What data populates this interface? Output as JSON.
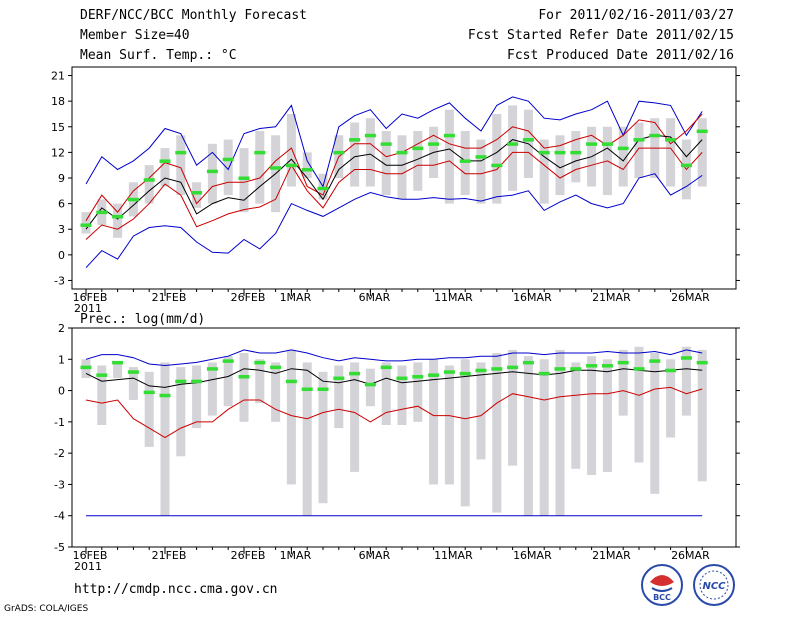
{
  "header": {
    "title": "DERF/NCC/BCC Monthly Forecast",
    "member_size": "Member Size=40",
    "variable": "Mean Surf. Temp.: °C",
    "period": "For 2011/02/16-2011/03/27",
    "started": "Fcst Started Refer Date 2011/02/15",
    "produced": "Fcst Produced Date 2011/02/16"
  },
  "footer": {
    "url": "http://cmdp.ncc.cma.gov.cn",
    "grads": "GrADS: COLA/IGES",
    "logo1": "BCC",
    "logo2": "NCC"
  },
  "colors": {
    "envelope": "#0000cc",
    "spread": "#cc0000",
    "mean": "#000000",
    "box": "#d3d3d8",
    "median": "#33dd33"
  },
  "chart_data": [
    {
      "type": "line",
      "title": "Mean Surf. Temp.: °C",
      "ylim": [
        -4,
        22
      ],
      "yticks": [
        -3,
        0,
        3,
        6,
        9,
        12,
        15,
        18,
        21
      ],
      "xticks": [
        {
          "day": 0,
          "label": "16FEB",
          "sub": "2011"
        },
        {
          "day": 5,
          "label": "21FEB"
        },
        {
          "day": 10,
          "label": "26FEB"
        },
        {
          "day": 13,
          "label": "1MAR"
        },
        {
          "day": 18,
          "label": "6MAR"
        },
        {
          "day": 23,
          "label": "11MAR"
        },
        {
          "day": 28,
          "label": "16MAR"
        },
        {
          "day": 33,
          "label": "21MAR"
        },
        {
          "day": 38,
          "label": "26MAR"
        }
      ],
      "days": 40,
      "series": [
        {
          "name": "max",
          "values": [
            8.3,
            11.5,
            10.0,
            11.0,
            12.5,
            14.8,
            14.2,
            10.5,
            12.0,
            10.0,
            14.2,
            14.8,
            15.0,
            17.5,
            11.0,
            8.0,
            15.0,
            16.3,
            17.0,
            14.8,
            16.5,
            16.0,
            17.0,
            17.8,
            16.0,
            14.5,
            17.5,
            18.5,
            18.0,
            16.0,
            15.8,
            16.5,
            17.0,
            18.0,
            14.0,
            18.0,
            17.8,
            17.5,
            14.0,
            16.8
          ]
        },
        {
          "name": "upper",
          "values": [
            4.0,
            7.0,
            5.0,
            7.5,
            9.0,
            10.8,
            10.2,
            6.0,
            8.0,
            8.5,
            8.5,
            9.0,
            11.0,
            12.5,
            8.0,
            7.0,
            11.5,
            13.0,
            13.0,
            11.5,
            12.0,
            13.0,
            14.0,
            13.0,
            12.5,
            12.5,
            13.5,
            15.0,
            14.5,
            12.5,
            12.8,
            13.5,
            14.0,
            12.8,
            14.0,
            15.8,
            15.5,
            13.0,
            14.5,
            16.5
          ]
        },
        {
          "name": "mean",
          "values": [
            3.0,
            5.5,
            4.2,
            5.8,
            7.5,
            9.0,
            8.5,
            4.8,
            6.0,
            6.7,
            6.4,
            8.0,
            9.5,
            11.2,
            9.0,
            6.5,
            10.0,
            11.5,
            11.8,
            10.5,
            10.5,
            11.2,
            12.0,
            12.4,
            11.0,
            11.0,
            12.0,
            13.5,
            13.0,
            11.5,
            10.2,
            11.0,
            11.5,
            12.5,
            11.0,
            13.5,
            14.0,
            13.8,
            11.5,
            13.5
          ]
        },
        {
          "name": "lower",
          "values": [
            1.8,
            3.5,
            3.0,
            4.2,
            6.0,
            8.3,
            7.0,
            3.3,
            4.0,
            4.8,
            5.3,
            5.6,
            6.5,
            10.5,
            7.5,
            5.5,
            8.5,
            10.0,
            10.0,
            9.5,
            9.5,
            10.5,
            10.5,
            11.0,
            9.5,
            9.5,
            10.0,
            12.0,
            12.0,
            10.5,
            9.0,
            10.0,
            10.5,
            11.0,
            10.0,
            12.5,
            12.5,
            12.5,
            10.0,
            12.0
          ]
        },
        {
          "name": "min",
          "values": [
            -1.5,
            0.5,
            -0.5,
            2.2,
            3.2,
            3.4,
            3.2,
            1.5,
            0.3,
            0.2,
            1.8,
            0.7,
            2.5,
            6.0,
            5.2,
            4.5,
            5.5,
            6.5,
            7.3,
            6.8,
            6.5,
            6.5,
            6.7,
            6.5,
            6.6,
            6.3,
            6.8,
            7.0,
            7.5,
            5.2,
            6.2,
            7.0,
            6.0,
            5.5,
            6.0,
            9.0,
            9.5,
            7.0,
            8.0,
            9.3
          ]
        },
        {
          "name": "median",
          "values": [
            3.5,
            5.0,
            4.5,
            6.5,
            8.8,
            11.0,
            12.0,
            7.3,
            9.8,
            11.2,
            9.0,
            12.0,
            10.2,
            10.5,
            10.0,
            7.8,
            12.0,
            13.5,
            14.0,
            13.0,
            12.0,
            12.5,
            13.0,
            14.0,
            11.0,
            11.5,
            10.5,
            13.0,
            13.5,
            12.0,
            12.0,
            12.0,
            13.0,
            13.0,
            12.5,
            13.5,
            14.0,
            13.5,
            10.5,
            14.5
          ]
        },
        {
          "name": "box_low",
          "values": [
            2.5,
            3.5,
            2.0,
            4.5,
            6.0,
            8.0,
            7.0,
            5.5,
            6.0,
            7.0,
            5.0,
            6.0,
            5.0,
            8.0,
            9.0,
            6.5,
            9.0,
            8.0,
            8.0,
            7.0,
            6.5,
            7.5,
            9.0,
            6.0,
            7.0,
            6.0,
            6.0,
            7.5,
            9.0,
            6.0,
            7.0,
            8.5,
            8.0,
            7.0,
            8.0,
            9.0,
            9.0,
            8.0,
            6.5,
            8.0
          ]
        },
        {
          "name": "box_high",
          "values": [
            5.0,
            6.5,
            6.0,
            8.5,
            10.5,
            12.5,
            14.0,
            8.5,
            13.0,
            13.5,
            12.5,
            14.5,
            14.0,
            16.5,
            12.0,
            9.5,
            14.0,
            15.5,
            16.0,
            14.5,
            14.0,
            14.5,
            15.0,
            17.0,
            14.5,
            13.5,
            16.5,
            17.5,
            17.0,
            13.5,
            14.0,
            14.5,
            15.0,
            15.0,
            15.0,
            15.5,
            16.0,
            16.0,
            13.5,
            16.0
          ]
        }
      ]
    },
    {
      "type": "line",
      "title": "Prec.: log(mm/d)",
      "ylim": [
        -5,
        2
      ],
      "yticks": [
        -5,
        -4,
        -3,
        -2,
        -1,
        0,
        1,
        2
      ],
      "xticks": [
        {
          "day": 0,
          "label": "16FEB",
          "sub": "2011"
        },
        {
          "day": 5,
          "label": "21FEB"
        },
        {
          "day": 10,
          "label": "26FEB"
        },
        {
          "day": 13,
          "label": "1MAR"
        },
        {
          "day": 18,
          "label": "6MAR"
        },
        {
          "day": 23,
          "label": "11MAR"
        },
        {
          "day": 28,
          "label": "16MAR"
        },
        {
          "day": 33,
          "label": "21MAR"
        },
        {
          "day": 38,
          "label": "26MAR"
        }
      ],
      "days": 40,
      "threshold": -4,
      "series": [
        {
          "name": "max",
          "values": [
            1.0,
            1.15,
            1.15,
            1.05,
            0.85,
            0.8,
            0.85,
            0.9,
            1.0,
            1.1,
            1.3,
            1.2,
            1.2,
            1.3,
            1.2,
            1.05,
            0.95,
            1.05,
            1.0,
            0.95,
            0.95,
            1.0,
            1.0,
            1.05,
            1.05,
            1.1,
            1.1,
            1.2,
            1.2,
            1.15,
            1.2,
            1.2,
            1.2,
            1.25,
            1.2,
            1.2,
            1.25,
            1.15,
            1.3,
            1.2
          ]
        },
        {
          "name": "mean",
          "values": [
            0.55,
            0.3,
            0.35,
            0.4,
            0.15,
            0.1,
            0.2,
            0.25,
            0.35,
            0.45,
            0.7,
            0.65,
            0.55,
            0.7,
            0.65,
            0.3,
            0.25,
            0.35,
            0.2,
            0.4,
            0.25,
            0.3,
            0.35,
            0.4,
            0.45,
            0.5,
            0.55,
            0.6,
            0.55,
            0.5,
            0.55,
            0.65,
            0.65,
            0.6,
            0.7,
            0.65,
            0.6,
            0.65,
            0.7,
            0.65
          ]
        },
        {
          "name": "min",
          "values": [
            -0.3,
            -0.4,
            -0.3,
            -0.9,
            -1.2,
            -1.5,
            -1.2,
            -1.0,
            -1.0,
            -0.6,
            -0.3,
            -0.3,
            -0.6,
            -0.8,
            -0.9,
            -0.7,
            -0.6,
            -0.7,
            -1.0,
            -0.7,
            -0.6,
            -0.5,
            -0.8,
            -0.8,
            -0.9,
            -0.8,
            -0.4,
            -0.1,
            -0.2,
            -0.3,
            -0.2,
            -0.15,
            -0.1,
            -0.1,
            0.0,
            -0.15,
            0.05,
            0.1,
            -0.1,
            0.05
          ]
        },
        {
          "name": "median",
          "values": [
            0.75,
            0.5,
            0.9,
            0.6,
            -0.05,
            -0.15,
            0.3,
            0.3,
            0.7,
            0.95,
            0.45,
            0.9,
            0.75,
            0.3,
            0.05,
            0.05,
            0.4,
            0.55,
            0.2,
            0.75,
            0.4,
            0.45,
            0.5,
            0.6,
            0.55,
            0.65,
            0.7,
            0.75,
            0.9,
            0.55,
            0.7,
            0.7,
            0.8,
            0.8,
            0.9,
            0.7,
            0.95,
            0.65,
            1.05,
            0.9
          ]
        },
        {
          "name": "box_low",
          "values": [
            0.4,
            -1.1,
            0.4,
            -0.3,
            -1.8,
            -4.0,
            -2.1,
            -1.2,
            -0.8,
            -0.5,
            -1.0,
            -0.4,
            -1.0,
            -3.0,
            -4.0,
            -3.6,
            -1.2,
            -2.6,
            -0.5,
            -1.1,
            -1.1,
            -1.0,
            -3.0,
            -3.0,
            -3.7,
            -2.2,
            -3.9,
            -2.4,
            -4.0,
            -4.0,
            -4.0,
            -2.5,
            -2.7,
            -2.6,
            -0.8,
            -2.3,
            -3.3,
            -1.5,
            -0.8,
            -2.9
          ]
        },
        {
          "name": "box_high",
          "values": [
            1.0,
            0.8,
            0.9,
            0.75,
            0.6,
            0.9,
            0.75,
            0.8,
            0.9,
            1.1,
            1.2,
            1.0,
            0.9,
            1.3,
            0.9,
            0.6,
            0.8,
            0.9,
            0.7,
            0.9,
            0.8,
            0.9,
            1.0,
            0.8,
            1.0,
            0.9,
            1.2,
            1.3,
            1.1,
            1.0,
            1.3,
            0.9,
            1.1,
            1.0,
            1.3,
            1.4,
            1.2,
            1.0,
            1.4,
            1.3
          ]
        }
      ]
    }
  ]
}
